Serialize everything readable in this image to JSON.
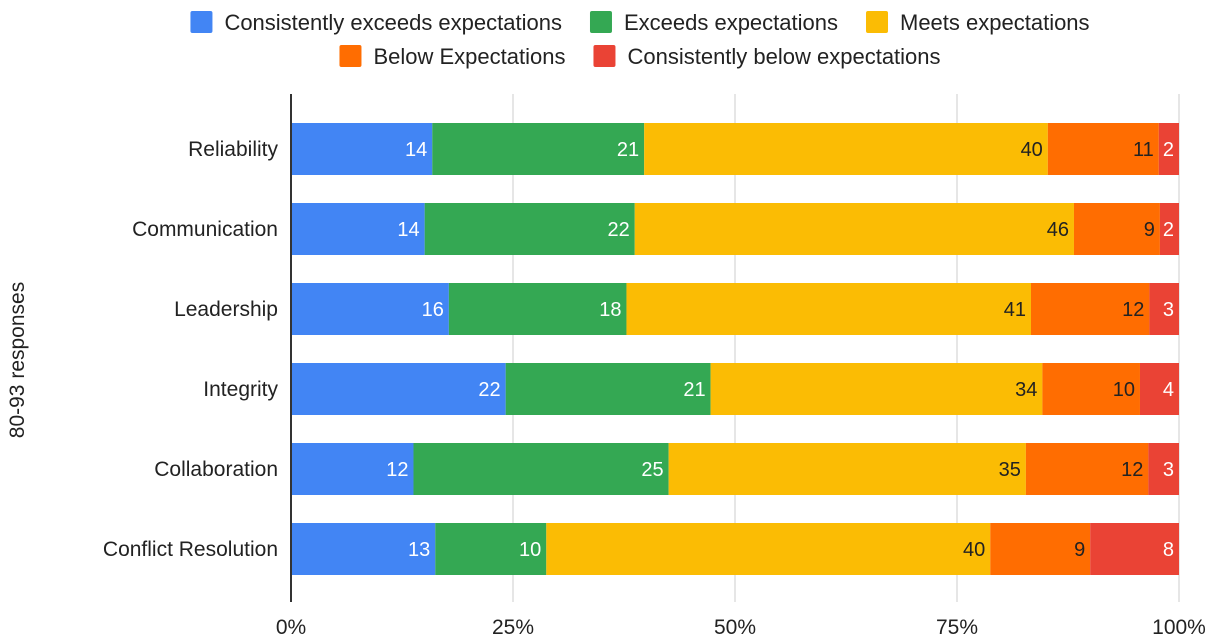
{
  "chart_data": {
    "type": "bar",
    "orientation": "horizontal",
    "stacked": "percent",
    "title": "",
    "xlabel": "",
    "ylabel": "80-93 responses",
    "xlim": [
      0,
      100
    ],
    "x_ticks": [
      "0%",
      "25%",
      "50%",
      "75%",
      "100%"
    ],
    "grid": true,
    "legend_position": "top",
    "categories": [
      "Reliability",
      "Communication",
      "Leadership",
      "Integrity",
      "Collaboration",
      "Conflict Resolution"
    ],
    "series": [
      {
        "name": "Consistently exceeds expectations",
        "color": "#4285f4",
        "label_color": "#ffffff",
        "values": [
          14,
          14,
          16,
          22,
          12,
          13
        ]
      },
      {
        "name": "Exceeds expectations",
        "color": "#34a853",
        "label_color": "#ffffff",
        "values": [
          21,
          22,
          18,
          21,
          25,
          10
        ]
      },
      {
        "name": "Meets expectations",
        "color": "#fbbc04",
        "label_color": "#222222",
        "values": [
          40,
          46,
          41,
          34,
          35,
          40
        ]
      },
      {
        "name": "Below Expectations",
        "color": "#ff6d01",
        "label_color": "#222222",
        "values": [
          11,
          9,
          12,
          10,
          12,
          9
        ]
      },
      {
        "name": "Consistently below expectations",
        "color": "#ea4335",
        "label_color": "#ffffff",
        "values": [
          2,
          2,
          3,
          4,
          3,
          8
        ]
      }
    ]
  }
}
